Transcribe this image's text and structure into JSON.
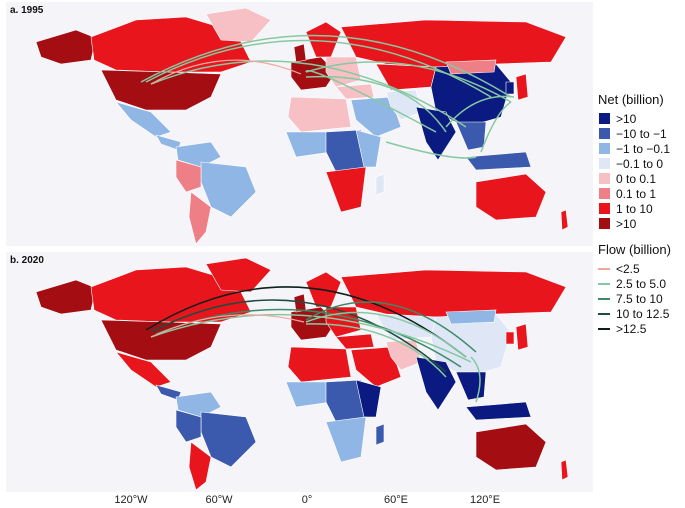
{
  "panels": [
    {
      "label": "a. 1995"
    },
    {
      "label": "b. 2020"
    }
  ],
  "x_ticks": [
    "120°W",
    "60°W",
    "0°",
    "60°E",
    "120°E"
  ],
  "legend_net": {
    "title": "Net (billion)",
    "items": [
      {
        "label": ">10",
        "color": "#0a1a80"
      },
      {
        "label": "−10 to −1",
        "color": "#3c5aad"
      },
      {
        "label": "−1 to −0.1",
        "color": "#8fb6e4"
      },
      {
        "label": "−0.1 to 0",
        "color": "#dfe7f6"
      },
      {
        "label": "0 to 0.1",
        "color": "#f6c0c4"
      },
      {
        "label": "0.1 to 1",
        "color": "#ee7f86"
      },
      {
        "label": "1 to 10",
        "color": "#e8151d"
      },
      {
        "label": ">10",
        "color": "#a40e13"
      }
    ]
  },
  "legend_flow": {
    "title": "Flow (billion)",
    "items": [
      {
        "label": "<2.5",
        "color": "#f0a7a0"
      },
      {
        "label": "2.5 to 5.0",
        "color": "#86c9a1"
      },
      {
        "label": "7.5 to 10",
        "color": "#3c8a66"
      },
      {
        "label": "10 to 12.5",
        "color": "#1f4c3e"
      },
      {
        "label": ">12.5",
        "color": "#0d1f1a"
      }
    ]
  }
}
